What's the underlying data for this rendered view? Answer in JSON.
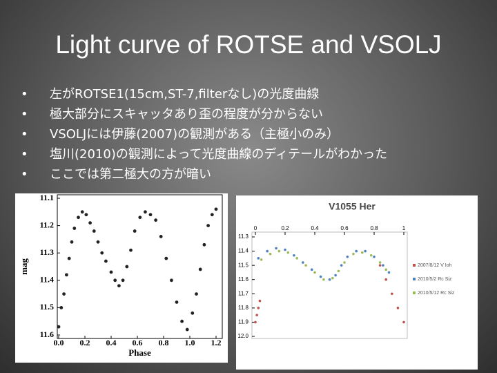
{
  "title": "Light curve of ROTSE and VSOLJ",
  "bullets": [
    "左がROTSE1(15cm,ST-7,filterなし)の光度曲線",
    "極大部分にスキャッタあり歪の程度が分からない",
    "VSOLJには伊藤(2007)の観測がある（主極小のみ）",
    "塩川(2010)の観測によって光度曲線のディテールがわかった",
    "ここでは第二極大の方が暗い"
  ],
  "chart_data": [
    {
      "type": "scatter",
      "x_label": "Phase",
      "y_label": "mag",
      "inverted_y": true,
      "xlim": [
        0,
        1.2
      ],
      "ylim": [
        11.1,
        11.6
      ],
      "xticks": [
        {
          "value": 0,
          "label": "0.0"
        },
        0.2,
        0.4,
        0.6,
        0.8,
        {
          "value": 1,
          "label": "1.0"
        },
        1.2
      ],
      "yticks": [
        11.1,
        11.2,
        11.3,
        11.4,
        11.5,
        11.6
      ],
      "series": [
        {
          "color": "#222222",
          "x": [
            0.0,
            0.02,
            0.04,
            0.06,
            0.08,
            0.1,
            0.12,
            0.15,
            0.18,
            0.21,
            0.24,
            0.27,
            0.3,
            0.33,
            0.36,
            0.4,
            0.43,
            0.46,
            0.49,
            0.52,
            0.55,
            0.58,
            0.62,
            0.66,
            0.7,
            0.74,
            0.78,
            0.82,
            0.86,
            0.9,
            0.94,
            0.98,
            1.02,
            1.05,
            1.08,
            1.11,
            1.14,
            1.17,
            1.2
          ],
          "values": [
            11.57,
            11.5,
            11.45,
            11.38,
            11.32,
            11.26,
            11.21,
            11.17,
            11.15,
            11.16,
            11.19,
            11.22,
            11.26,
            11.3,
            11.33,
            11.37,
            11.4,
            11.42,
            11.4,
            11.35,
            11.29,
            11.22,
            11.17,
            11.15,
            11.16,
            11.18,
            11.24,
            11.32,
            11.4,
            11.48,
            11.55,
            11.58,
            11.52,
            11.45,
            11.36,
            11.27,
            11.2,
            11.16,
            11.14
          ]
        }
      ]
    },
    {
      "type": "scatter",
      "title": "V1055 Her",
      "inverted_y": true,
      "x_axis_position": "top",
      "legend": "right",
      "xlim": [
        0,
        1
      ],
      "ylim": [
        11.3,
        12.0
      ],
      "xticks": [
        0,
        0.2,
        0.4,
        0.6,
        0.8,
        1
      ],
      "yticks": [
        11.3,
        11.4,
        11.5,
        11.6,
        11.7,
        11.8,
        11.9,
        {
          "value": 12,
          "label": "12.0"
        }
      ],
      "series": [
        {
          "name": "2007/8/12 V Ioh",
          "color": "#c0504d",
          "x": [
            0.0,
            0.01,
            0.02,
            0.03,
            0.84,
            0.88,
            0.92,
            0.96,
            1.0
          ],
          "values": [
            11.9,
            11.85,
            11.8,
            11.75,
            11.5,
            11.6,
            11.7,
            11.8,
            11.9
          ]
        },
        {
          "name": "2010/5/2 Rc Siz",
          "color": "#4f81bd",
          "x": [
            0.02,
            0.08,
            0.14,
            0.2,
            0.26,
            0.32,
            0.38,
            0.44,
            0.5,
            0.54,
            0.58,
            0.62,
            0.68,
            0.74,
            0.8,
            0.86,
            0.9
          ],
          "values": [
            11.45,
            11.4,
            11.38,
            11.39,
            11.43,
            11.48,
            11.53,
            11.58,
            11.6,
            11.57,
            11.5,
            11.44,
            11.4,
            11.4,
            11.44,
            11.5,
            11.55
          ]
        },
        {
          "name": "2010/5/12 Rc Siz",
          "color": "#9bbb59",
          "x": [
            0.04,
            0.1,
            0.16,
            0.22,
            0.28,
            0.34,
            0.4,
            0.46,
            0.52,
            0.56,
            0.6,
            0.66,
            0.72,
            0.78,
            0.84,
            0.88
          ],
          "values": [
            11.46,
            11.42,
            11.4,
            11.41,
            11.45,
            11.5,
            11.55,
            11.6,
            11.59,
            11.54,
            11.48,
            11.42,
            11.41,
            11.43,
            11.48,
            11.53
          ]
        }
      ]
    }
  ]
}
